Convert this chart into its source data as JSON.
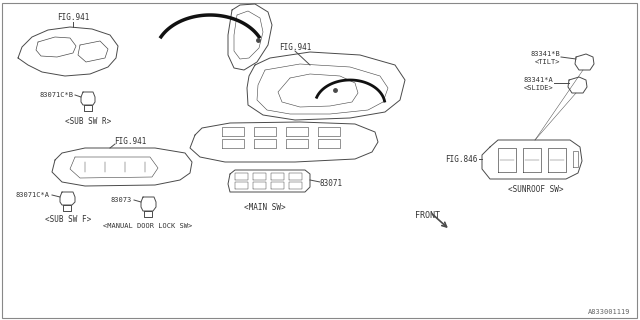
{
  "bg_color": "#ffffff",
  "line_color": "#4a4a4a",
  "text_color": "#333333",
  "diagram_id": "A833001119",
  "labels": {
    "fig941_top": "FIG.941",
    "fig941_mid": "FIG.941",
    "fig941_bot": "FIG.941",
    "fig846": "FIG.846",
    "part_83071c_b": "83071C*B",
    "part_83071c_a": "83071C*A",
    "part_83071": "83071",
    "part_83073": "83073",
    "part_83341b": "83341*B",
    "part_83341a": "83341*A",
    "sub_sw_r": "<SUB SW R>",
    "sub_sw_f": "<SUB SW F>",
    "main_sw": "<MAIN SW>",
    "manual_lock": "<MANUAL DOOR LOCK SW>",
    "sunroof_sw": "<SUNROOF SW>",
    "tilt": "<TILT>",
    "slide": "<SLIDE>",
    "front": "FRONT"
  }
}
